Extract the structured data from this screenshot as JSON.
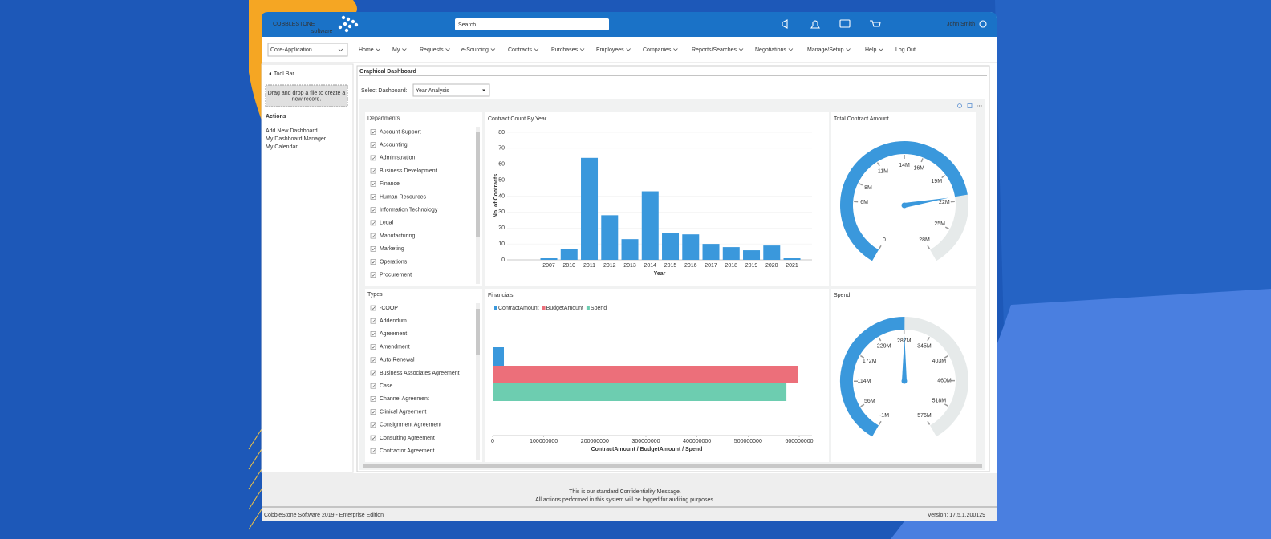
{
  "header": {
    "logo": "COBBLESTONE",
    "logo_sub": "software",
    "search_placeholder": "Search",
    "user": "John Smith"
  },
  "nav": {
    "app_select": "Core-Application",
    "items": [
      "Home",
      "My",
      "Requests",
      "e-Sourcing",
      "Contracts",
      "Purchases",
      "Employees",
      "Companies",
      "Reports/Searches",
      "Negotiations",
      "Manage/Setup",
      "Help",
      "Log Out"
    ]
  },
  "sidebar": {
    "toolbar": "Tool Bar",
    "dropzone": [
      "Drag and drop a file to create a",
      "new record."
    ],
    "actions_title": "Actions",
    "actions": [
      "Add New Dashboard",
      "My Dashboard Manager",
      "My Calendar"
    ]
  },
  "dashboard": {
    "title": "Graphical Dashboard",
    "select_label": "Select Dashboard:",
    "select_value": "Year Analysis",
    "departments": {
      "title": "Departments",
      "items": [
        "Account Support",
        "Accounting",
        "Administration",
        "Business Development",
        "Finance",
        "Human Resources",
        "Information Technology",
        "Legal",
        "Manufacturing",
        "Marketing",
        "Operations",
        "Procurement"
      ]
    },
    "types": {
      "title": "Types",
      "items": [
        "-COOP",
        "Addendum",
        "Agreement",
        "Amendment",
        "Auto Renewal",
        "Business Associates Agreement",
        "Case",
        "Channel Agreement",
        "Clinical Agreement",
        "Consignment Agreement",
        "Consulting Agreement",
        "Contractor Agreement"
      ]
    },
    "contract_count": {
      "type": "bar",
      "title": "Contract Count By Year",
      "x_label": "Year",
      "y_label": "No. of Contracts",
      "categories": [
        "2007",
        "2010",
        "2011",
        "2012",
        "2013",
        "2014",
        "2015",
        "2016",
        "2017",
        "2018",
        "2019",
        "2020",
        "2021"
      ],
      "values": [
        1,
        7,
        64,
        28,
        13,
        43,
        17,
        16,
        10,
        8,
        6,
        9,
        1
      ],
      "color": "#3a98dc",
      "ylim": [
        0,
        80
      ],
      "yticks": [
        0,
        10,
        20,
        30,
        40,
        50,
        60,
        70,
        80
      ],
      "grid": true
    },
    "financials": {
      "type": "hbar",
      "title": "Financials",
      "x_label": "ContractAmount / BudgetAmount / Spend",
      "series": [
        {
          "name": "ContractAmount",
          "color": "#3a98dc",
          "values": [
            22000000
          ]
        },
        {
          "name": "BudgetAmount",
          "color": "#ec6f7a",
          "values": [
            598000000
          ]
        },
        {
          "name": "Spend",
          "color": "#6dcdb0",
          "values": [
            575000000
          ]
        }
      ],
      "xlim": [
        0,
        600000000
      ],
      "xticks": [
        0,
        100000000,
        200000000,
        300000000,
        400000000,
        500000000,
        600000000
      ]
    },
    "total_contract": {
      "type": "gauge",
      "title": "Total Contract Amount",
      "value": 21500000,
      "color": "#3a98dc",
      "ylim": [
        0,
        28000000
      ],
      "yticks": [
        {
          "value": 0,
          "label": "0"
        },
        {
          "value": 6000000,
          "label": "6M"
        },
        {
          "value": 8000000,
          "label": "8M"
        },
        {
          "value": 11000000,
          "label": "11M"
        },
        {
          "value": 14000000,
          "label": "14M"
        },
        {
          "value": 16000000,
          "label": "16M"
        },
        {
          "value": 19000000,
          "label": "19M"
        },
        {
          "value": 22000000,
          "label": "22M"
        },
        {
          "value": 25000000,
          "label": "25M"
        },
        {
          "value": 28000000,
          "label": "28M"
        }
      ]
    },
    "spend": {
      "type": "gauge",
      "title": "Spend",
      "value": 288000000,
      "color": "#3a98dc",
      "ylim": [
        -1000000,
        576000000
      ],
      "yticks": [
        {
          "value": -1000000,
          "label": "-1M"
        },
        {
          "value": 56000000,
          "label": "56M"
        },
        {
          "value": 114000000,
          "label": "114M"
        },
        {
          "value": 172000000,
          "label": "172M"
        },
        {
          "value": 229000000,
          "label": "229M"
        },
        {
          "value": 287000000,
          "label": "287M"
        },
        {
          "value": 345000000,
          "label": "345M"
        },
        {
          "value": 403000000,
          "label": "403M"
        },
        {
          "value": 460000000,
          "label": "460M"
        },
        {
          "value": 518000000,
          "label": "518M"
        },
        {
          "value": 576000000,
          "label": "576M"
        }
      ]
    }
  },
  "footer": {
    "message": [
      "This is our standard Confidentiality Message.",
      "All actions performed in this system will be logged for auditing purposes."
    ],
    "edition": "CobbleStone Software 2019 - Enterprise Edition",
    "version": "Version: 17.5.1.200129"
  }
}
